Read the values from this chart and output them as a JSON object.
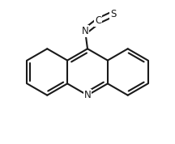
{
  "bg_color": "#ffffff",
  "line_color": "#1a1a1a",
  "line_width": 1.5,
  "dbo": 0.012,
  "figsize": [
    2.16,
    1.78
  ],
  "dpi": 100,
  "xlim": [
    -1.8,
    1.8
  ],
  "ylim": [
    -1.55,
    1.55
  ],
  "ring_size": 0.5,
  "n_bottom_label": "N",
  "n_ncs_label": "N",
  "c_ncs_label": "C",
  "s_ncs_label": "S",
  "label_fontsize": 8.5
}
